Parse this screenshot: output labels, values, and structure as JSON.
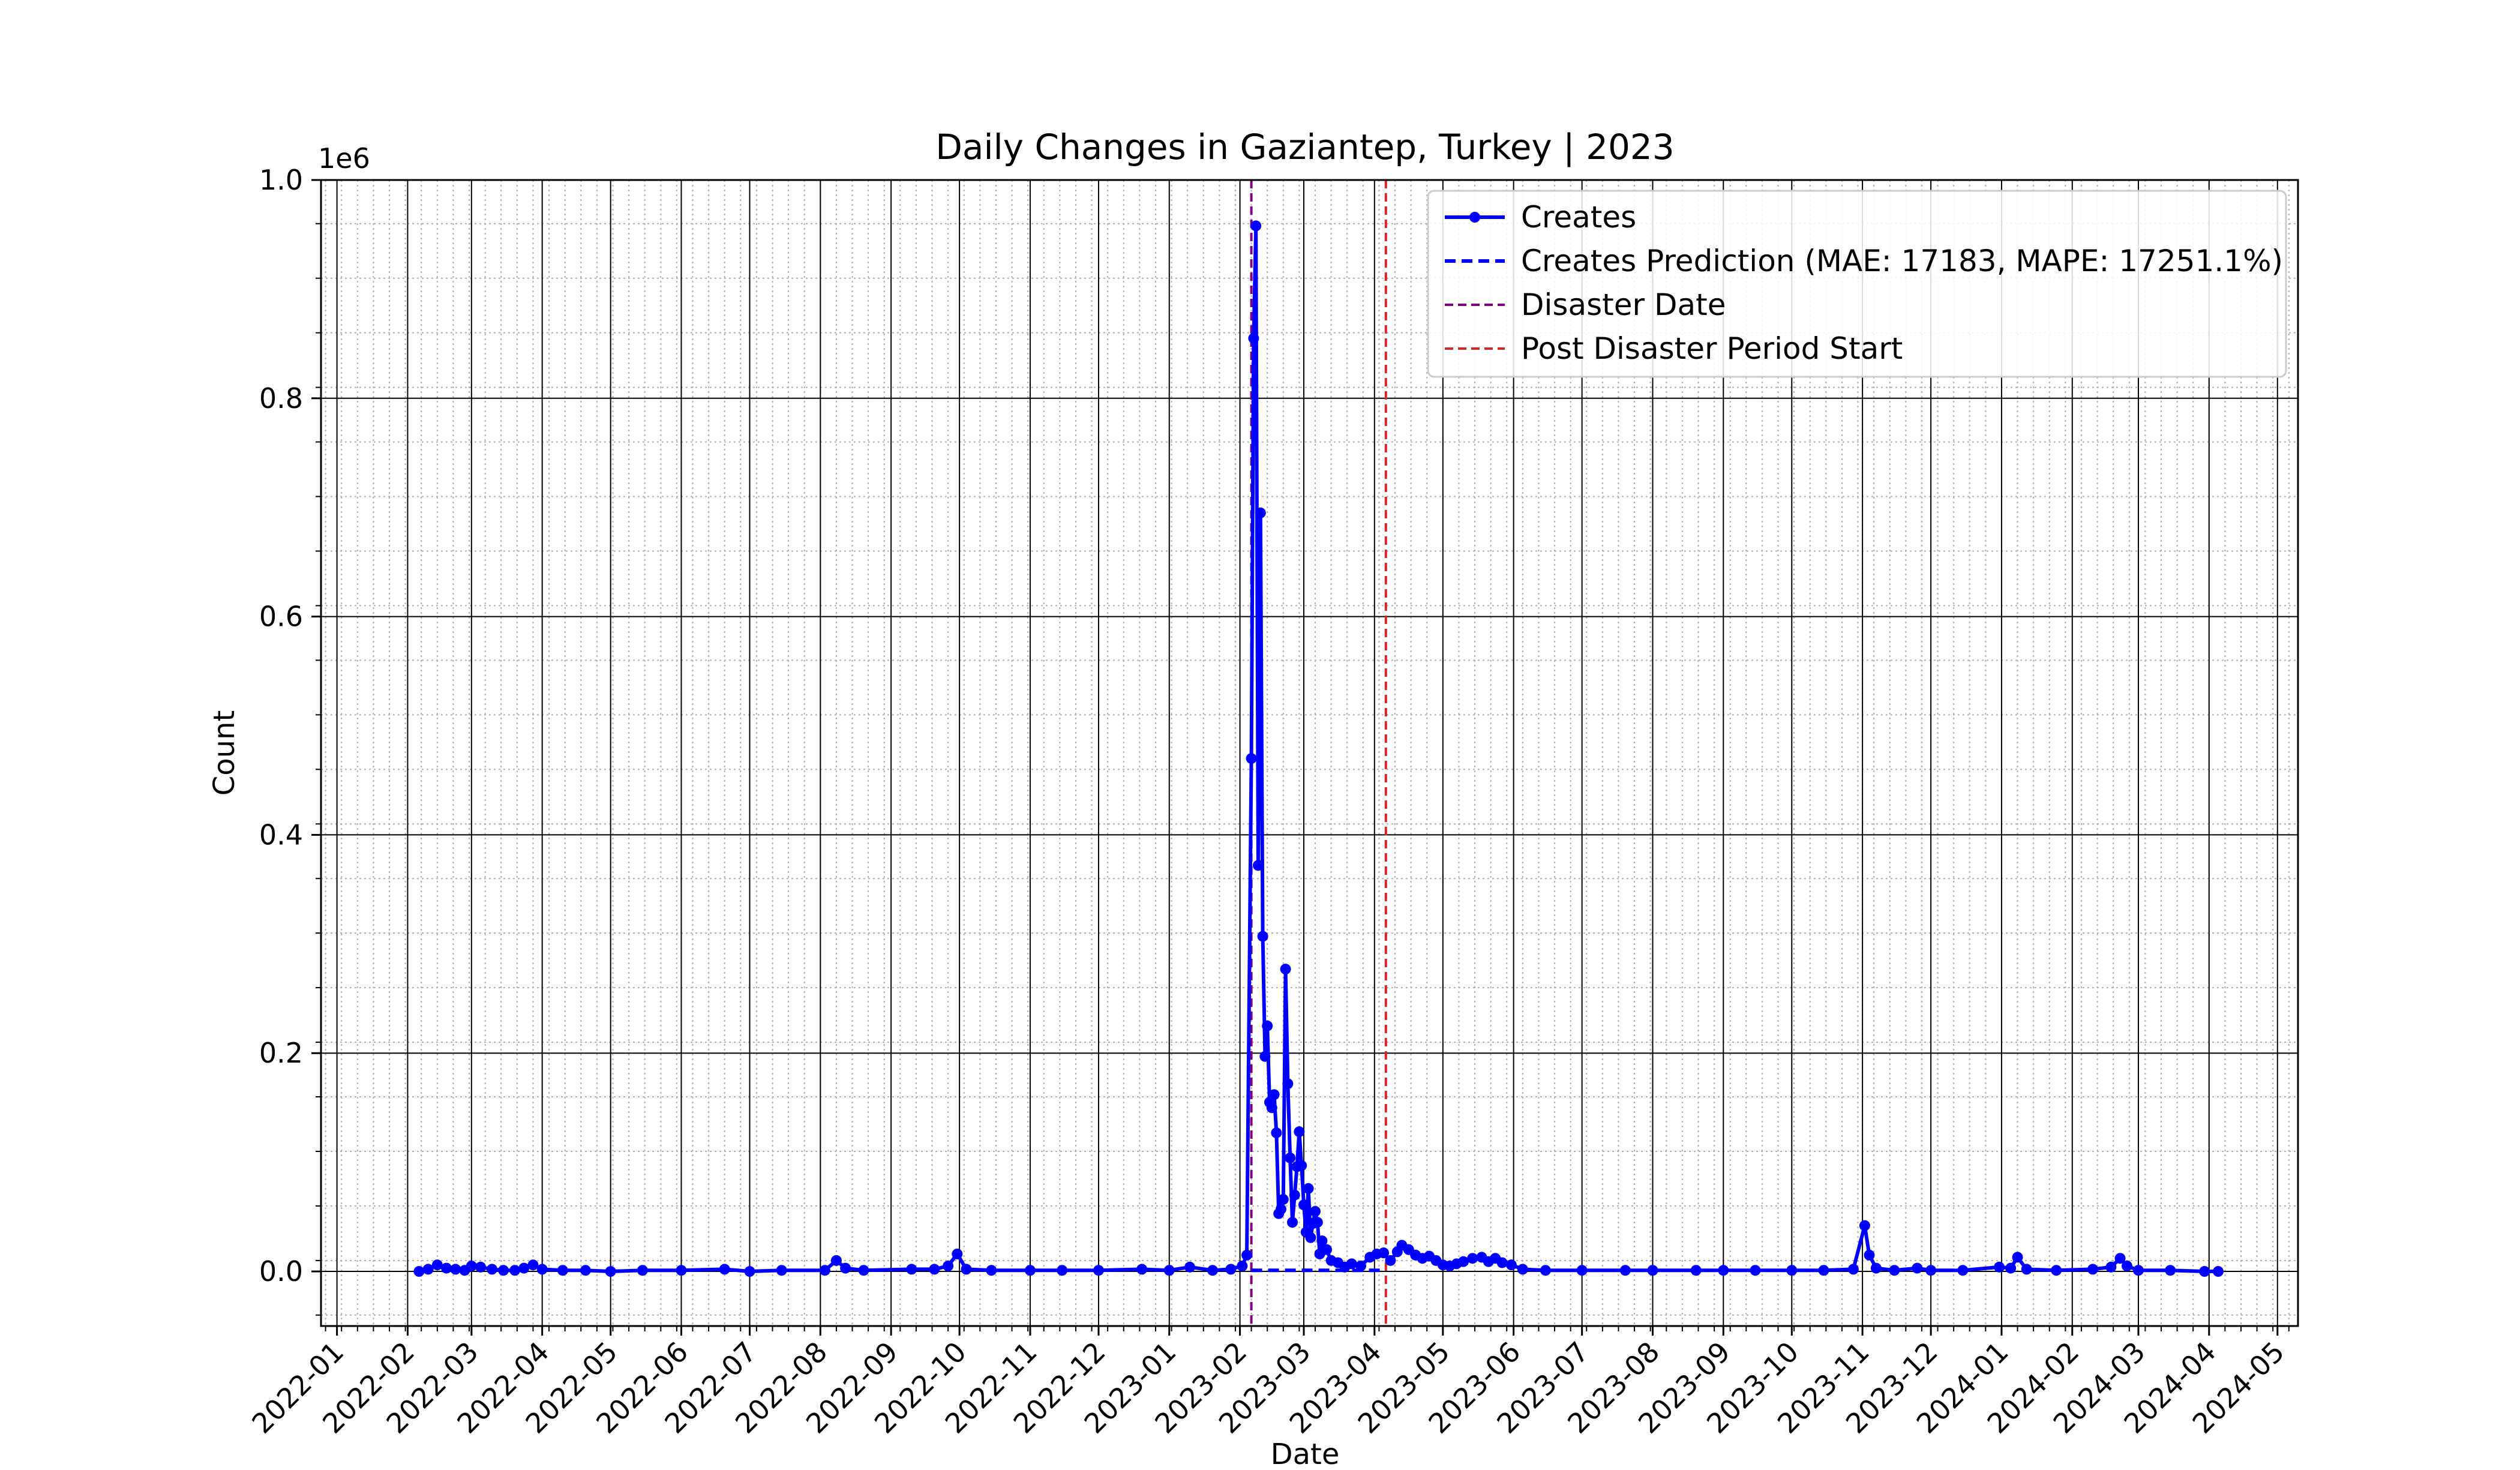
{
  "chart_data": {
    "type": "line",
    "title": "Daily Changes in Gaziantep, Turkey | 2023",
    "xlabel": "Date",
    "ylabel": "Count",
    "y_offset_label": "1e6",
    "ylim": [
      -0.05,
      1.0
    ],
    "y_ticks": [
      0.0,
      0.2,
      0.4,
      0.6,
      0.8,
      1.0
    ],
    "y_tick_labels": [
      "0.0",
      "0.2",
      "0.4",
      "0.6",
      "0.8",
      "1.0"
    ],
    "xlim": [
      "2021-12-25",
      "2024-05-10"
    ],
    "x_ticks": [
      "2022-01-01",
      "2022-02-01",
      "2022-03-01",
      "2022-04-01",
      "2022-05-01",
      "2022-06-01",
      "2022-07-01",
      "2022-08-01",
      "2022-09-01",
      "2022-10-01",
      "2022-11-01",
      "2022-12-01",
      "2023-01-01",
      "2023-02-01",
      "2023-03-01",
      "2023-04-01",
      "2023-05-01",
      "2023-06-01",
      "2023-07-01",
      "2023-08-01",
      "2023-09-01",
      "2023-10-01",
      "2023-11-01",
      "2023-12-01",
      "2024-01-01",
      "2024-02-01",
      "2024-03-01",
      "2024-04-01",
      "2024-05-01"
    ],
    "x_tick_labels": [
      "2022-01",
      "2022-02",
      "2022-03",
      "2022-04",
      "2022-05",
      "2022-06",
      "2022-07",
      "2022-08",
      "2022-09",
      "2022-10",
      "2022-11",
      "2022-12",
      "2023-01",
      "2023-02",
      "2023-03",
      "2023-04",
      "2023-05",
      "2023-06",
      "2023-07",
      "2023-08",
      "2023-09",
      "2023-10",
      "2023-11",
      "2023-12",
      "2024-01",
      "2024-02",
      "2024-03",
      "2024-04",
      "2024-05"
    ],
    "grid": true,
    "legend": "top-right",
    "series": [
      {
        "name": "Creates",
        "style": "line-with-markers",
        "color": "#0000ff",
        "points": [
          [
            "2022-02-06",
            0.0
          ],
          [
            "2022-02-10",
            0.002
          ],
          [
            "2022-02-14",
            0.006
          ],
          [
            "2022-02-18",
            0.003
          ],
          [
            "2022-02-22",
            0.002
          ],
          [
            "2022-02-26",
            0.001
          ],
          [
            "2022-03-01",
            0.005
          ],
          [
            "2022-03-05",
            0.004
          ],
          [
            "2022-03-10",
            0.002
          ],
          [
            "2022-03-15",
            0.001
          ],
          [
            "2022-03-20",
            0.001
          ],
          [
            "2022-03-24",
            0.003
          ],
          [
            "2022-03-28",
            0.006
          ],
          [
            "2022-04-01",
            0.002
          ],
          [
            "2022-04-10",
            0.001
          ],
          [
            "2022-04-20",
            0.001
          ],
          [
            "2022-05-01",
            0.0
          ],
          [
            "2022-05-15",
            0.001
          ],
          [
            "2022-06-01",
            0.001
          ],
          [
            "2022-06-20",
            0.002
          ],
          [
            "2022-07-01",
            0.0
          ],
          [
            "2022-07-15",
            0.001
          ],
          [
            "2022-08-03",
            0.001
          ],
          [
            "2022-08-08",
            0.01
          ],
          [
            "2022-08-12",
            0.003
          ],
          [
            "2022-08-20",
            0.001
          ],
          [
            "2022-09-10",
            0.002
          ],
          [
            "2022-09-20",
            0.002
          ],
          [
            "2022-09-26",
            0.005
          ],
          [
            "2022-09-30",
            0.016
          ],
          [
            "2022-10-04",
            0.002
          ],
          [
            "2022-10-15",
            0.001
          ],
          [
            "2022-11-01",
            0.001
          ],
          [
            "2022-11-15",
            0.001
          ],
          [
            "2022-12-01",
            0.001
          ],
          [
            "2022-12-20",
            0.002
          ],
          [
            "2023-01-01",
            0.001
          ],
          [
            "2023-01-10",
            0.004
          ],
          [
            "2023-01-20",
            0.001
          ],
          [
            "2023-01-28",
            0.002
          ],
          [
            "2023-02-02",
            0.005
          ],
          [
            "2023-02-04",
            0.015
          ],
          [
            "2023-02-06",
            0.47
          ],
          [
            "2023-02-07",
            0.855
          ],
          [
            "2023-02-08",
            0.958
          ],
          [
            "2023-02-09",
            0.372
          ],
          [
            "2023-02-10",
            0.695
          ],
          [
            "2023-02-11",
            0.307
          ],
          [
            "2023-02-12",
            0.197
          ],
          [
            "2023-02-13",
            0.225
          ],
          [
            "2023-02-14",
            0.155
          ],
          [
            "2023-02-15",
            0.15
          ],
          [
            "2023-02-16",
            0.162
          ],
          [
            "2023-02-17",
            0.127
          ],
          [
            "2023-02-18",
            0.053
          ],
          [
            "2023-02-19",
            0.057
          ],
          [
            "2023-02-20",
            0.066
          ],
          [
            "2023-02-21",
            0.277
          ],
          [
            "2023-02-22",
            0.172
          ],
          [
            "2023-02-23",
            0.104
          ],
          [
            "2023-02-24",
            0.045
          ],
          [
            "2023-02-25",
            0.07
          ],
          [
            "2023-02-26",
            0.096
          ],
          [
            "2023-02-27",
            0.128
          ],
          [
            "2023-02-28",
            0.097
          ],
          [
            "2023-03-01",
            0.061
          ],
          [
            "2023-03-02",
            0.036
          ],
          [
            "2023-03-03",
            0.076
          ],
          [
            "2023-03-04",
            0.031
          ],
          [
            "2023-03-05",
            0.044
          ],
          [
            "2023-03-06",
            0.055
          ],
          [
            "2023-03-07",
            0.045
          ],
          [
            "2023-03-08",
            0.016
          ],
          [
            "2023-03-09",
            0.028
          ],
          [
            "2023-03-11",
            0.02
          ],
          [
            "2023-03-13",
            0.01
          ],
          [
            "2023-03-16",
            0.008
          ],
          [
            "2023-03-19",
            0.004
          ],
          [
            "2023-03-22",
            0.007
          ],
          [
            "2023-03-26",
            0.005
          ],
          [
            "2023-03-30",
            0.013
          ],
          [
            "2023-04-02",
            0.016
          ],
          [
            "2023-04-05",
            0.017
          ],
          [
            "2023-04-08",
            0.01
          ],
          [
            "2023-04-11",
            0.018
          ],
          [
            "2023-04-13",
            0.024
          ],
          [
            "2023-04-16",
            0.02
          ],
          [
            "2023-04-19",
            0.015
          ],
          [
            "2023-04-22",
            0.012
          ],
          [
            "2023-04-25",
            0.014
          ],
          [
            "2023-04-28",
            0.01
          ],
          [
            "2023-05-01",
            0.006
          ],
          [
            "2023-05-04",
            0.005
          ],
          [
            "2023-05-07",
            0.007
          ],
          [
            "2023-05-10",
            0.009
          ],
          [
            "2023-05-14",
            0.012
          ],
          [
            "2023-05-18",
            0.013
          ],
          [
            "2023-05-21",
            0.009
          ],
          [
            "2023-05-24",
            0.012
          ],
          [
            "2023-05-27",
            0.008
          ],
          [
            "2023-05-31",
            0.006
          ],
          [
            "2023-06-05",
            0.002
          ],
          [
            "2023-06-15",
            0.001
          ],
          [
            "2023-07-01",
            0.001
          ],
          [
            "2023-07-20",
            0.001
          ],
          [
            "2023-08-01",
            0.001
          ],
          [
            "2023-08-20",
            0.001
          ],
          [
            "2023-09-01",
            0.001
          ],
          [
            "2023-09-15",
            0.001
          ],
          [
            "2023-10-01",
            0.001
          ],
          [
            "2023-10-15",
            0.001
          ],
          [
            "2023-10-28",
            0.002
          ],
          [
            "2023-11-02",
            0.042
          ],
          [
            "2023-11-04",
            0.015
          ],
          [
            "2023-11-07",
            0.003
          ],
          [
            "2023-11-15",
            0.001
          ],
          [
            "2023-11-25",
            0.003
          ],
          [
            "2023-12-01",
            0.001
          ],
          [
            "2023-12-15",
            0.001
          ],
          [
            "2023-12-31",
            0.004
          ],
          [
            "2024-01-05",
            0.003
          ],
          [
            "2024-01-08",
            0.013
          ],
          [
            "2024-01-12",
            0.002
          ],
          [
            "2024-01-25",
            0.001
          ],
          [
            "2024-02-10",
            0.002
          ],
          [
            "2024-02-18",
            0.004
          ],
          [
            "2024-02-22",
            0.012
          ],
          [
            "2024-02-25",
            0.005
          ],
          [
            "2024-03-01",
            0.001
          ],
          [
            "2024-03-15",
            0.001
          ],
          [
            "2024-03-30",
            0.0
          ],
          [
            "2024-04-05",
            0.0
          ]
        ]
      },
      {
        "name": "Creates Prediction (MAE: 17183, MAPE: 17251.1%)",
        "style": "dashed",
        "color": "#0000ff",
        "points": [
          [
            "2023-02-06",
            0.001
          ],
          [
            "2023-04-05",
            0.001
          ]
        ]
      }
    ],
    "vlines": [
      {
        "name": "Disaster Date",
        "x": "2023-02-06",
        "color": "#800080"
      },
      {
        "name": "Post Disaster Period Start",
        "x": "2023-04-06",
        "color": "#d62728"
      }
    ]
  }
}
